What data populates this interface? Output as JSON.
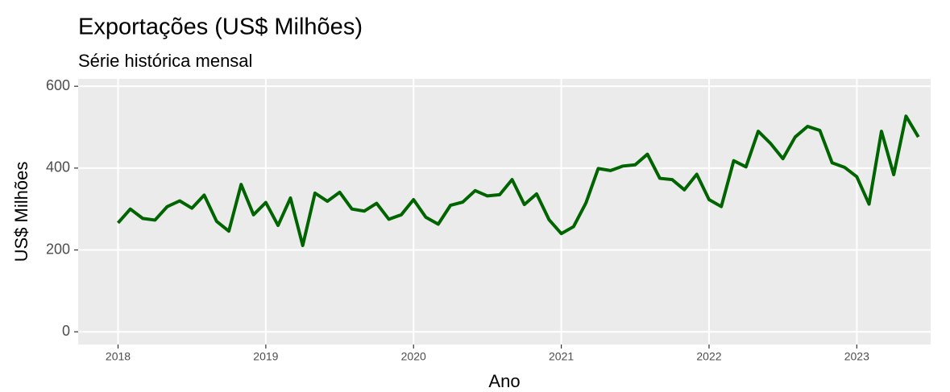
{
  "chart_data": {
    "type": "line",
    "title": "Exportações (US$ Milhões)",
    "subtitle": "Série histórica mensal",
    "x_label": "Ano",
    "y_label": "US$ Milhões",
    "x": [
      2018,
      2018.083,
      2018.167,
      2018.25,
      2018.333,
      2018.417,
      2018.5,
      2018.583,
      2018.667,
      2018.75,
      2018.833,
      2018.917,
      2019,
      2019.083,
      2019.167,
      2019.25,
      2019.333,
      2019.417,
      2019.5,
      2019.583,
      2019.667,
      2019.75,
      2019.833,
      2019.917,
      2020,
      2020.083,
      2020.167,
      2020.25,
      2020.333,
      2020.417,
      2020.5,
      2020.583,
      2020.667,
      2020.75,
      2020.833,
      2020.917,
      2021,
      2021.083,
      2021.167,
      2021.25,
      2021.333,
      2021.417,
      2021.5,
      2021.583,
      2021.667,
      2021.75,
      2021.833,
      2021.917,
      2022,
      2022.083,
      2022.167,
      2022.25,
      2022.333,
      2022.417,
      2022.5,
      2022.583,
      2022.667,
      2022.75,
      2022.833,
      2022.917,
      2023,
      2023.083,
      2023.167,
      2023.25,
      2023.333,
      2023.417
    ],
    "series": [
      {
        "name": "Exportações",
        "color": "#006400",
        "values": [
          266,
          300,
          277,
          273,
          306,
          320,
          302,
          334,
          270,
          246,
          360,
          286,
          316,
          260,
          327,
          211,
          339,
          319,
          341,
          300,
          295,
          314,
          275,
          286,
          323,
          280,
          263,
          309,
          317,
          345,
          332,
          335,
          372,
          311,
          337,
          274,
          240,
          257,
          315,
          399,
          394,
          405,
          408,
          434,
          375,
          372,
          347,
          385,
          323,
          306,
          418,
          403,
          490,
          460,
          423,
          476,
          502,
          492,
          413,
          402,
          379,
          312,
          490,
          384,
          527,
          476
        ]
      }
    ],
    "xlim": [
      2017.73,
      2023.5
    ],
    "xticks": [
      2018,
      2019,
      2020,
      2021,
      2022,
      2023
    ],
    "ylim": [
      -31,
      618
    ],
    "yticks": [
      0,
      200,
      400,
      600
    ],
    "grid": true
  }
}
